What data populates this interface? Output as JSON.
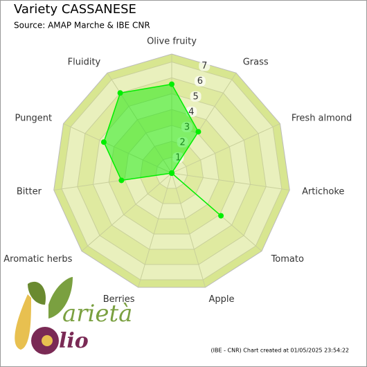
{
  "chart_data": {
    "type": "radar",
    "title": "Variety CASSANESE",
    "subtitle": "Source: AMAP Marche & IBE CNR",
    "categories": [
      "Olive fruity",
      "Grass",
      "Fresh almond",
      "Artichoke",
      "Tomato",
      "Apple",
      "Berries",
      "Aromatic herbs",
      "Bitter",
      "Pungent",
      "Fluidity"
    ],
    "values": [
      5.6,
      3.1,
      0,
      0,
      4.1,
      0,
      0,
      0,
      3.2,
      4.7,
      6.0
    ],
    "color": "#00ee00",
    "rlim": [
      0,
      7.5
    ],
    "rticks": [
      1,
      2,
      3,
      4,
      5,
      6,
      7
    ],
    "credit": "(IBE - CNR) Chart created at 01/05/2025 23:54:22",
    "logo": {
      "top": "arietà",
      "bottom": "lio"
    }
  }
}
